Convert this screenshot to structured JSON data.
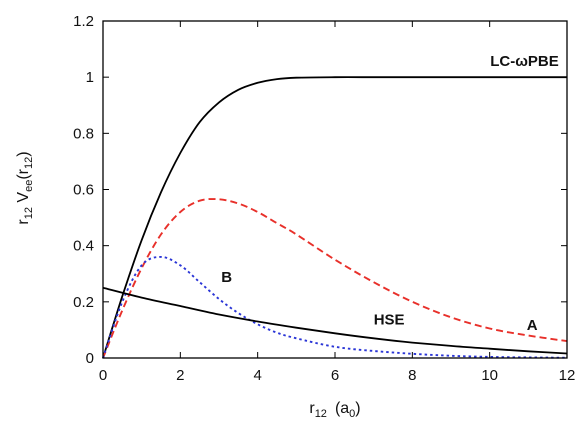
{
  "chart_data": {
    "type": "line",
    "title": "",
    "xlabel": {
      "base": "r",
      "sub": "12",
      "rest": "(a",
      "sub2": "0",
      "tail": ")"
    },
    "ylabel": {
      "p1": "r",
      "s1": "12",
      "p2": " V",
      "s2": "ee",
      "p3": "(r",
      "s3": "12",
      "p4": ")"
    },
    "xlim": [
      0,
      12
    ],
    "ylim": [
      0,
      1.2
    ],
    "xticks": [
      0,
      2,
      4,
      6,
      8,
      10,
      12
    ],
    "yticks": [
      0,
      0.2,
      0.4,
      0.6,
      0.8,
      1,
      1.2
    ],
    "xtick_labels": [
      "0",
      "2",
      "4",
      "6",
      "8",
      "10",
      "12"
    ],
    "ytick_labels": [
      "0",
      "0.2",
      "0.4",
      "0.6",
      "0.8",
      "1",
      "1.2"
    ],
    "grid": false,
    "series": [
      {
        "name": "LC-ωPBE",
        "color": "#000000",
        "dash": "solid",
        "x": [
          0,
          0.5,
          1,
          1.5,
          2,
          2.5,
          3,
          3.5,
          4,
          4.5,
          5,
          6,
          7,
          8,
          9,
          10,
          11,
          12
        ],
        "y": [
          0,
          0.22,
          0.42,
          0.59,
          0.73,
          0.84,
          0.91,
          0.955,
          0.98,
          0.993,
          0.998,
          1.0,
          1.0,
          1.0,
          1.0,
          1.0,
          1.0,
          1.0
        ]
      },
      {
        "name": "A",
        "color": "#e8302a",
        "dash": "dashed",
        "x": [
          0,
          0.5,
          1,
          1.5,
          2,
          2.5,
          3,
          3.5,
          4,
          4.5,
          5,
          6,
          7,
          8,
          9,
          10,
          11,
          12
        ],
        "y": [
          0,
          0.17,
          0.32,
          0.44,
          0.52,
          0.56,
          0.565,
          0.55,
          0.52,
          0.48,
          0.44,
          0.35,
          0.27,
          0.2,
          0.145,
          0.105,
          0.08,
          0.06
        ]
      },
      {
        "name": "B",
        "color": "#2a35d6",
        "dash": "dotted",
        "x": [
          0,
          0.5,
          1,
          1.5,
          2,
          2.5,
          3,
          3.5,
          4,
          4.5,
          5,
          6,
          7,
          8,
          9,
          10,
          11,
          12
        ],
        "y": [
          0,
          0.2,
          0.33,
          0.36,
          0.33,
          0.27,
          0.21,
          0.16,
          0.12,
          0.09,
          0.07,
          0.04,
          0.025,
          0.015,
          0.008,
          0.004,
          0.002,
          0.001
        ]
      },
      {
        "name": "HSE",
        "color": "#000000",
        "dash": "solid",
        "x": [
          0,
          1,
          2,
          3,
          4,
          5,
          6,
          7,
          8,
          9,
          10,
          11,
          12
        ],
        "y": [
          0.25,
          0.215,
          0.185,
          0.155,
          0.13,
          0.108,
          0.088,
          0.07,
          0.055,
          0.043,
          0.033,
          0.024,
          0.016
        ]
      }
    ],
    "annotations": [
      {
        "text": "LC-ωPBE",
        "x": 10.9,
        "y": 1.04
      },
      {
        "text": "B",
        "x": 3.2,
        "y": 0.27
      },
      {
        "text": "HSE",
        "x": 7.4,
        "y": 0.12
      },
      {
        "text": "A",
        "x": 11.1,
        "y": 0.1
      }
    ]
  }
}
